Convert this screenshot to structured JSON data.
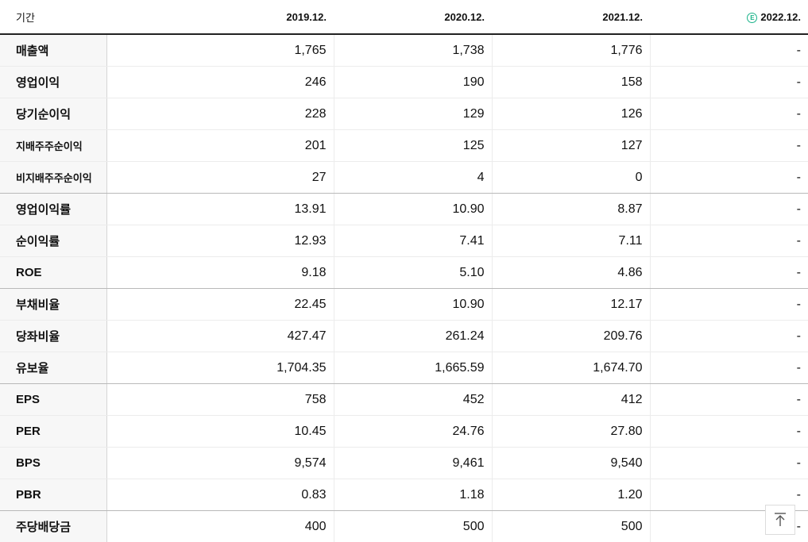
{
  "header": {
    "period_label": "기간",
    "years": [
      "2019.12.",
      "2020.12.",
      "2021.12.",
      "2022.12."
    ],
    "estimate_badge": "E"
  },
  "rows": [
    {
      "label": "매출액",
      "values": [
        "1,765",
        "1,738",
        "1,776",
        "-"
      ]
    },
    {
      "label": "영업이익",
      "values": [
        "246",
        "190",
        "158",
        "-"
      ]
    },
    {
      "label": "당기순이익",
      "values": [
        "228",
        "129",
        "126",
        "-"
      ]
    },
    {
      "label": "지배주주순이익",
      "values": [
        "201",
        "125",
        "127",
        "-"
      ]
    },
    {
      "label": "비지배주주순이익",
      "values": [
        "27",
        "4",
        "0",
        "-"
      ]
    },
    {
      "label": "영업이익률",
      "values": [
        "13.91",
        "10.90",
        "8.87",
        "-"
      ]
    },
    {
      "label": "순이익률",
      "values": [
        "12.93",
        "7.41",
        "7.11",
        "-"
      ]
    },
    {
      "label": "ROE",
      "values": [
        "9.18",
        "5.10",
        "4.86",
        "-"
      ]
    },
    {
      "label": "부채비율",
      "values": [
        "22.45",
        "10.90",
        "12.17",
        "-"
      ]
    },
    {
      "label": "당좌비율",
      "values": [
        "427.47",
        "261.24",
        "209.76",
        "-"
      ]
    },
    {
      "label": "유보율",
      "values": [
        "1,704.35",
        "1,665.59",
        "1,674.70",
        "-"
      ]
    },
    {
      "label": "EPS",
      "values": [
        "758",
        "452",
        "412",
        "-"
      ]
    },
    {
      "label": "PER",
      "values": [
        "10.45",
        "24.76",
        "27.80",
        "-"
      ]
    },
    {
      "label": "BPS",
      "values": [
        "9,574",
        "9,461",
        "9,540",
        "-"
      ]
    },
    {
      "label": "PBR",
      "values": [
        "0.83",
        "1.18",
        "1.20",
        "-"
      ]
    },
    {
      "label": "주당배당금",
      "values": [
        "400",
        "500",
        "500",
        "-"
      ]
    }
  ],
  "icons": {
    "estimate": "estimate-e-icon",
    "scroll_top": "arrow-up-to-top-icon"
  },
  "colors": {
    "estimate_accent": "#1bb38a",
    "label_background": "#f7f7f7",
    "header_rule": "#222222"
  }
}
